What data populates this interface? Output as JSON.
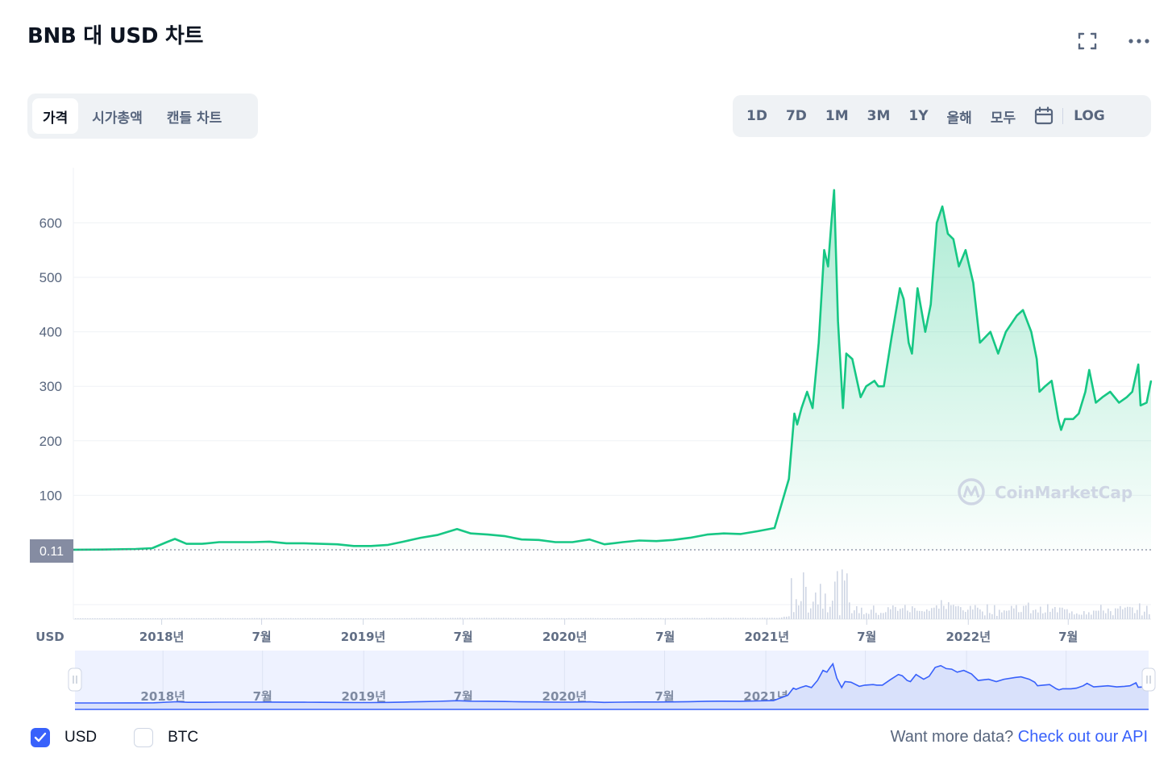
{
  "title": "BNB 대 USD 차트",
  "header_icons": [
    "fullscreen-icon",
    "more-icon"
  ],
  "tabs": [
    {
      "label": "가격",
      "active": true
    },
    {
      "label": "시가총액",
      "active": false
    },
    {
      "label": "캔들 차트",
      "active": false
    }
  ],
  "ranges": [
    "1D",
    "7D",
    "1M",
    "3M",
    "1Y",
    "올해",
    "모두"
  ],
  "log_label": "LOG",
  "currency_label": "USD",
  "watermark": "CoinMarketCap",
  "colors": {
    "line": "#16c784",
    "accent": "#3861fb",
    "navigator_line": "#3861fb",
    "volume": "#cfd6e4"
  },
  "chart_data": {
    "type": "area",
    "series": [
      {
        "name": "USD",
        "x": [
          "2017-07-25",
          "2017-09-15",
          "2017-11-15",
          "2017-12-15",
          "2018-01-10",
          "2018-01-25",
          "2018-02-15",
          "2018-03-15",
          "2018-04-15",
          "2018-05-15",
          "2018-06-15",
          "2018-07-15",
          "2018-08-15",
          "2018-09-15",
          "2018-10-15",
          "2018-11-15",
          "2018-12-15",
          "2019-01-15",
          "2019-02-15",
          "2019-03-15",
          "2019-04-15",
          "2019-05-15",
          "2019-06-20",
          "2019-07-15",
          "2019-08-15",
          "2019-09-15",
          "2019-10-15",
          "2019-11-15",
          "2019-12-15",
          "2020-01-15",
          "2020-02-15",
          "2020-03-13",
          "2020-04-15",
          "2020-05-15",
          "2020-06-15",
          "2020-07-15",
          "2020-08-15",
          "2020-09-15",
          "2020-10-15",
          "2020-11-15",
          "2020-12-15",
          "2021-01-15",
          "2021-02-10",
          "2021-02-20",
          "2021-02-25",
          "2021-03-05",
          "2021-03-15",
          "2021-03-25",
          "2021-04-05",
          "2021-04-15",
          "2021-04-22",
          "2021-04-28",
          "2021-05-03",
          "2021-05-10",
          "2021-05-19",
          "2021-05-25",
          "2021-06-05",
          "2021-06-20",
          "2021-06-30",
          "2021-07-15",
          "2021-07-22",
          "2021-08-01",
          "2021-08-15",
          "2021-08-30",
          "2021-09-06",
          "2021-09-15",
          "2021-09-21",
          "2021-10-01",
          "2021-10-15",
          "2021-10-25",
          "2021-11-05",
          "2021-11-15",
          "2021-11-25",
          "2021-12-05",
          "2021-12-15",
          "2021-12-27",
          "2022-01-10",
          "2022-01-22",
          "2022-02-10",
          "2022-02-24",
          "2022-03-10",
          "2022-03-30",
          "2022-04-10",
          "2022-04-25",
          "2022-05-05",
          "2022-05-10",
          "2022-05-20",
          "2022-06-01",
          "2022-06-13",
          "2022-06-18",
          "2022-06-25",
          "2022-07-10",
          "2022-07-20",
          "2022-08-01",
          "2022-08-08",
          "2022-08-20",
          "2022-09-01",
          "2022-09-15",
          "2022-10-01",
          "2022-10-15",
          "2022-10-25",
          "2022-11-05",
          "2022-11-09",
          "2022-11-20",
          "2022-11-28"
        ],
        "values": [
          0.11,
          0.5,
          1.5,
          3,
          14,
          20,
          11,
          11,
          14,
          14,
          14,
          15,
          12,
          12,
          11,
          10,
          7,
          7,
          9,
          15,
          22,
          27,
          38,
          30,
          28,
          25,
          19,
          18,
          14,
          14,
          19,
          10,
          14,
          17,
          16,
          18,
          22,
          28,
          30,
          29,
          34,
          40,
          130,
          250,
          230,
          260,
          290,
          260,
          380,
          550,
          520,
          600,
          660,
          420,
          260,
          360,
          350,
          280,
          300,
          310,
          300,
          300,
          390,
          480,
          460,
          380,
          360,
          480,
          400,
          450,
          600,
          630,
          580,
          570,
          520,
          550,
          490,
          380,
          400,
          360,
          400,
          430,
          440,
          400,
          350,
          290,
          300,
          310,
          240,
          220,
          240,
          240,
          250,
          290,
          330,
          270,
          280,
          290,
          270,
          280,
          290,
          340,
          265,
          270,
          310
        ]
      }
    ],
    "ylim": [
      0,
      680
    ],
    "yticks": [
      100,
      200,
      300,
      400,
      500,
      600
    ],
    "price_marker": "0.11",
    "xticks": [
      "2018년",
      "7월",
      "2019년",
      "7월",
      "2020년",
      "7월",
      "2021년",
      "7월",
      "2022년",
      "7월"
    ],
    "navigator_ticks": [
      "2018년",
      "7월",
      "2019년",
      "7월",
      "2020년",
      "7월",
      "2021년",
      "7월",
      "2022년",
      "7월"
    ],
    "grid": true,
    "legend": [
      {
        "label": "USD",
        "checked": true
      },
      {
        "label": "BTC",
        "checked": false
      }
    ]
  },
  "footer": {
    "text": "Want more data?",
    "link": "Check out our API"
  }
}
